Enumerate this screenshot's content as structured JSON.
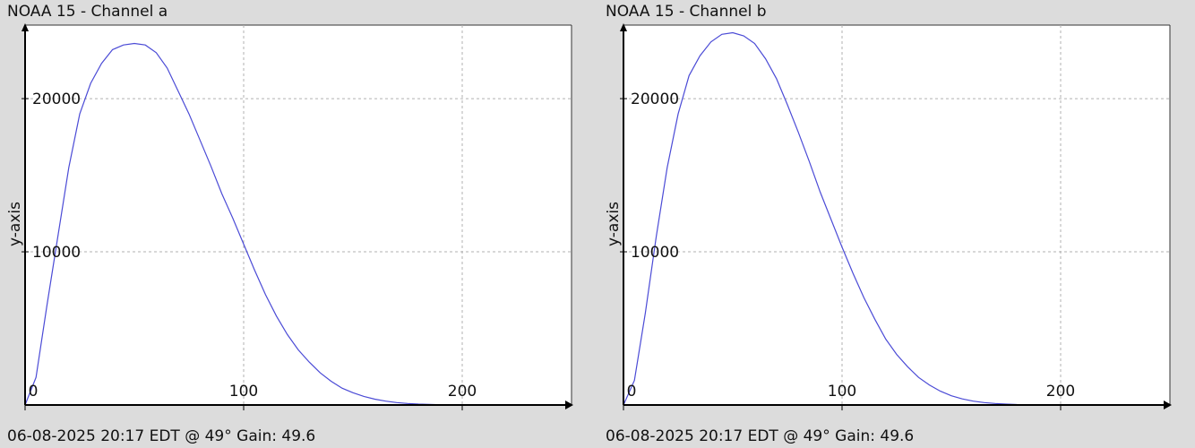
{
  "chart_data": [
    {
      "type": "line",
      "title": "NOAA 15 - Channel a",
      "footer": "06-08-2025 20:17 EDT @ 49° Gain: 49.6",
      "ylabel": "y-axis",
      "xlim": [
        0,
        250
      ],
      "ylim": [
        0,
        24800
      ],
      "x_ticks": [
        0,
        100,
        200
      ],
      "y_ticks": [
        10000,
        20000
      ],
      "grid": true,
      "line_color": "#4b4bd6",
      "series": [
        {
          "x": [
            0,
            5,
            10,
            15,
            20,
            25,
            30,
            35,
            40,
            45,
            50,
            55,
            60,
            65,
            70,
            75,
            80,
            85,
            90,
            95,
            100,
            105,
            110,
            115,
            120,
            125,
            130,
            135,
            140,
            145,
            150,
            155,
            160,
            165,
            170,
            175,
            180,
            185,
            190,
            195,
            200,
            205
          ],
          "y": [
            0,
            1800,
            6500,
            11000,
            15500,
            19000,
            21000,
            22300,
            23200,
            23500,
            23600,
            23500,
            23000,
            22000,
            20500,
            19000,
            17300,
            15600,
            13800,
            12200,
            10500,
            8800,
            7200,
            5800,
            4600,
            3600,
            2800,
            2100,
            1550,
            1100,
            800,
            560,
            380,
            250,
            160,
            100,
            60,
            35,
            20,
            12,
            8,
            5
          ]
        }
      ]
    },
    {
      "type": "line",
      "title": "NOAA 15 - Channel b",
      "footer": "06-08-2025 20:17 EDT @ 49° Gain: 49.6",
      "ylabel": "y-axis",
      "xlim": [
        0,
        250
      ],
      "ylim": [
        0,
        24800
      ],
      "x_ticks": [
        0,
        100,
        200
      ],
      "y_ticks": [
        10000,
        20000
      ],
      "grid": true,
      "line_color": "#4b4bd6",
      "series": [
        {
          "x": [
            0,
            5,
            10,
            15,
            20,
            25,
            30,
            35,
            40,
            45,
            50,
            55,
            60,
            65,
            70,
            75,
            80,
            85,
            90,
            95,
            100,
            105,
            110,
            115,
            120,
            125,
            130,
            135,
            140,
            145,
            150,
            155,
            160,
            165,
            170,
            175,
            180,
            185,
            190
          ],
          "y": [
            0,
            1600,
            6000,
            11000,
            15500,
            19000,
            21500,
            22800,
            23700,
            24200,
            24300,
            24100,
            23600,
            22600,
            21300,
            19600,
            17800,
            15900,
            13900,
            12100,
            10300,
            8600,
            7000,
            5600,
            4300,
            3300,
            2500,
            1800,
            1300,
            900,
            600,
            400,
            250,
            160,
            100,
            60,
            30,
            15,
            5
          ]
        }
      ]
    }
  ]
}
